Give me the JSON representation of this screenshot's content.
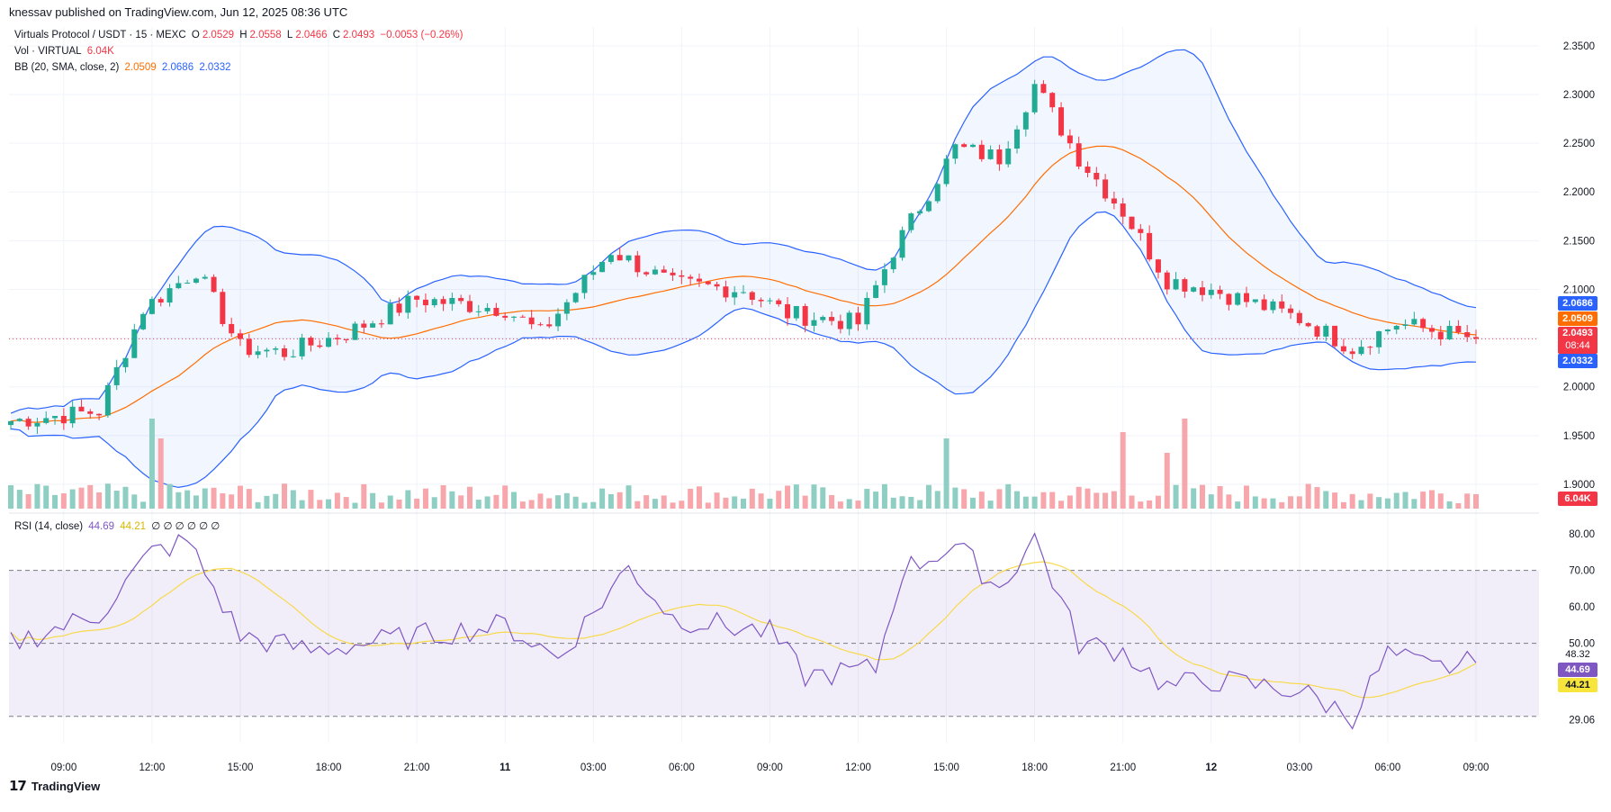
{
  "header": {
    "publisher_line": "knessav published on TradingView.com, Jun 12, 2025 08:36 UTC"
  },
  "legend": {
    "symbol": "Virtuals Protocol / USDT · 15 · MEXC",
    "o_label": "O",
    "o": "2.0529",
    "h_label": "H",
    "h": "2.0558",
    "l_label": "L",
    "l": "2.0466",
    "c_label": "C",
    "c": "2.0493",
    "change": "−0.0053 (−0.26%)",
    "vol_label": "Vol · VIRTUAL",
    "vol_value": "6.04K",
    "bb_label": "BB (20, SMA, close, 2)",
    "bb_basis": "2.0509",
    "bb_upper": "2.0686",
    "bb_lower": "2.0332",
    "rsi_label": "RSI (14, close)",
    "rsi_value": "44.69",
    "rsi_ma": "44.21",
    "rsi_extra": "∅ ∅ ∅ ∅ ∅ ∅"
  },
  "price_tags": {
    "bb_upper": "2.0686",
    "bb_basis": "2.0509",
    "last": "2.0493",
    "countdown": "08:44",
    "bb_lower": "2.0332",
    "volume": "6.04K",
    "rsi_mid": "48.32",
    "rsi": "44.69",
    "rsi_ma": "44.21"
  },
  "colors": {
    "up": "#22ab94",
    "down": "#f23645",
    "vol_up": "#8fcfc3",
    "vol_down": "#f7a7ab",
    "bb_band": "#2962ff",
    "bb_basis": "#ff6d00",
    "rsi": "#7e57c2",
    "rsi_ma": "#f7d94b"
  },
  "footer": {
    "brand": "TradingView",
    "logo_icon": "tradingview-logo-icon"
  },
  "chart_data": {
    "type": "candlestick",
    "symbol": "VIRTUAL/USDT",
    "interval": "15",
    "x_ticks": [
      "09:00",
      "12:00",
      "15:00",
      "18:00",
      "21:00",
      "11",
      "03:00",
      "06:00",
      "09:00",
      "12:00",
      "15:00",
      "18:00",
      "21:00",
      "12",
      "03:00",
      "06:00",
      "09:00"
    ],
    "x_tick_bar_index": [
      6,
      16,
      26,
      36,
      46,
      56,
      66,
      76,
      86,
      96,
      106,
      116,
      126,
      136,
      146,
      156,
      166
    ],
    "price_axis": {
      "ticks": [
        "2.3500",
        "2.3000",
        "2.2500",
        "2.2000",
        "2.1500",
        "2.1000",
        "2.0500",
        "2.0000",
        "1.9500",
        "1.9000"
      ],
      "range": [
        1.875,
        2.36
      ]
    },
    "rsi_axis": {
      "ticks": [
        "80.00",
        "70.00",
        "60.00",
        "50.00",
        "29.06"
      ],
      "range": [
        24,
        82
      ],
      "overbought": 70,
      "mid": 50,
      "oversold": 30
    },
    "key_points": [
      {
        "i": 0,
        "c": 1.965
      },
      {
        "i": 10,
        "c": 1.975
      },
      {
        "i": 15,
        "c": 2.08
      },
      {
        "i": 21,
        "c": 2.12
      },
      {
        "i": 26,
        "c": 2.04
      },
      {
        "i": 31,
        "c": 2.035
      },
      {
        "i": 38,
        "c": 2.055
      },
      {
        "i": 46,
        "c": 2.09
      },
      {
        "i": 56,
        "c": 2.08
      },
      {
        "i": 60,
        "c": 2.055
      },
      {
        "i": 68,
        "c": 2.14
      },
      {
        "i": 75,
        "c": 2.105
      },
      {
        "i": 83,
        "c": 2.1
      },
      {
        "i": 88,
        "c": 2.075
      },
      {
        "i": 96,
        "c": 2.065
      },
      {
        "i": 100,
        "c": 2.14
      },
      {
        "i": 107,
        "c": 2.245
      },
      {
        "i": 112,
        "c": 2.235
      },
      {
        "i": 116,
        "c": 2.31
      },
      {
        "i": 121,
        "c": 2.235
      },
      {
        "i": 126,
        "c": 2.18
      },
      {
        "i": 131,
        "c": 2.11
      },
      {
        "i": 136,
        "c": 2.1
      },
      {
        "i": 146,
        "c": 2.07
      },
      {
        "i": 152,
        "c": 2.04
      },
      {
        "i": 157,
        "c": 2.065
      },
      {
        "i": 166,
        "c": 2.0493
      }
    ],
    "volume_spikes": [
      {
        "i": 16,
        "v": 1.0
      },
      {
        "i": 17,
        "v": 0.78
      },
      {
        "i": 106,
        "v": 0.78
      },
      {
        "i": 126,
        "v": 0.85
      },
      {
        "i": 133,
        "v": 1.0
      },
      {
        "i": 131,
        "v": 0.62
      }
    ],
    "rsi_key_points": [
      {
        "i": 0,
        "v": 50
      },
      {
        "i": 10,
        "v": 58
      },
      {
        "i": 16,
        "v": 75
      },
      {
        "i": 20,
        "v": 78
      },
      {
        "i": 26,
        "v": 52
      },
      {
        "i": 34,
        "v": 48
      },
      {
        "i": 46,
        "v": 52
      },
      {
        "i": 56,
        "v": 55
      },
      {
        "i": 62,
        "v": 46
      },
      {
        "i": 70,
        "v": 71
      },
      {
        "i": 75,
        "v": 57
      },
      {
        "i": 86,
        "v": 53
      },
      {
        "i": 90,
        "v": 41
      },
      {
        "i": 98,
        "v": 43
      },
      {
        "i": 101,
        "v": 70
      },
      {
        "i": 107,
        "v": 77
      },
      {
        "i": 112,
        "v": 65
      },
      {
        "i": 116,
        "v": 79
      },
      {
        "i": 121,
        "v": 50
      },
      {
        "i": 126,
        "v": 48
      },
      {
        "i": 131,
        "v": 38
      },
      {
        "i": 136,
        "v": 40
      },
      {
        "i": 146,
        "v": 37
      },
      {
        "i": 152,
        "v": 30
      },
      {
        "i": 156,
        "v": 47
      },
      {
        "i": 161,
        "v": 43
      },
      {
        "i": 166,
        "v": 44.69
      }
    ],
    "ylabel": "",
    "xlabel": ""
  }
}
